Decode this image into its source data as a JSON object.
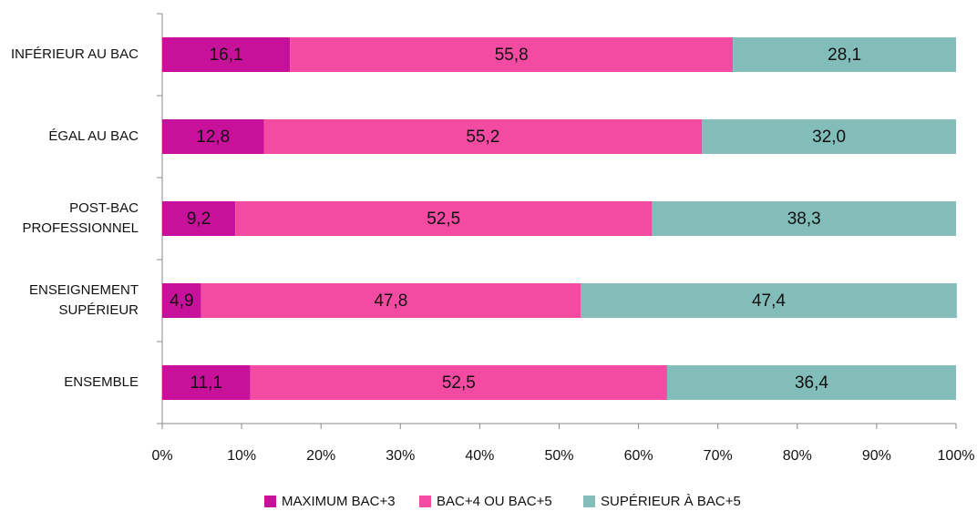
{
  "chart_data": {
    "type": "stacked-barh",
    "categories": [
      "INFÉRIEUR AU BAC",
      "ÉGAL AU BAC",
      "POST-BAC\nPROFESSIONNEL",
      "ENSEIGNEMENT\nSUPÉRIEUR",
      "ENSEMBLE"
    ],
    "series": [
      {
        "name": "MAXIMUM BAC+3",
        "color": "#c8119a",
        "values": [
          16.1,
          12.8,
          9.2,
          4.9,
          11.1
        ],
        "value_labels": [
          "16,1",
          "12,8",
          "9,2",
          "4,9",
          "11,1"
        ]
      },
      {
        "name": "BAC+4 OU BAC+5",
        "color": "#f44ba2",
        "values": [
          55.8,
          55.2,
          52.5,
          47.8,
          52.5
        ],
        "value_labels": [
          "55,8",
          "55,2",
          "52,5",
          "47,8",
          "52,5"
        ]
      },
      {
        "name": "SUPÉRIEUR À BAC+5",
        "color": "#82bdb9",
        "values": [
          28.1,
          32.0,
          38.3,
          47.4,
          36.4
        ],
        "value_labels": [
          "28,1",
          "32,0",
          "38,3",
          "47,4",
          "36,4"
        ]
      }
    ],
    "xlim": [
      0,
      100
    ],
    "xticks": [
      {
        "value": 0,
        "label": "0%"
      },
      {
        "value": 10,
        "label": "10%"
      },
      {
        "value": 20,
        "label": "20%"
      },
      {
        "value": 30,
        "label": "30%"
      },
      {
        "value": 40,
        "label": "40%"
      },
      {
        "value": 50,
        "label": "50%"
      },
      {
        "value": 60,
        "label": "60%"
      },
      {
        "value": 70,
        "label": "70%"
      },
      {
        "value": 80,
        "label": "80%"
      },
      {
        "value": 90,
        "label": "90%"
      },
      {
        "value": 100,
        "label": "100%"
      }
    ],
    "legend": "bottom"
  }
}
